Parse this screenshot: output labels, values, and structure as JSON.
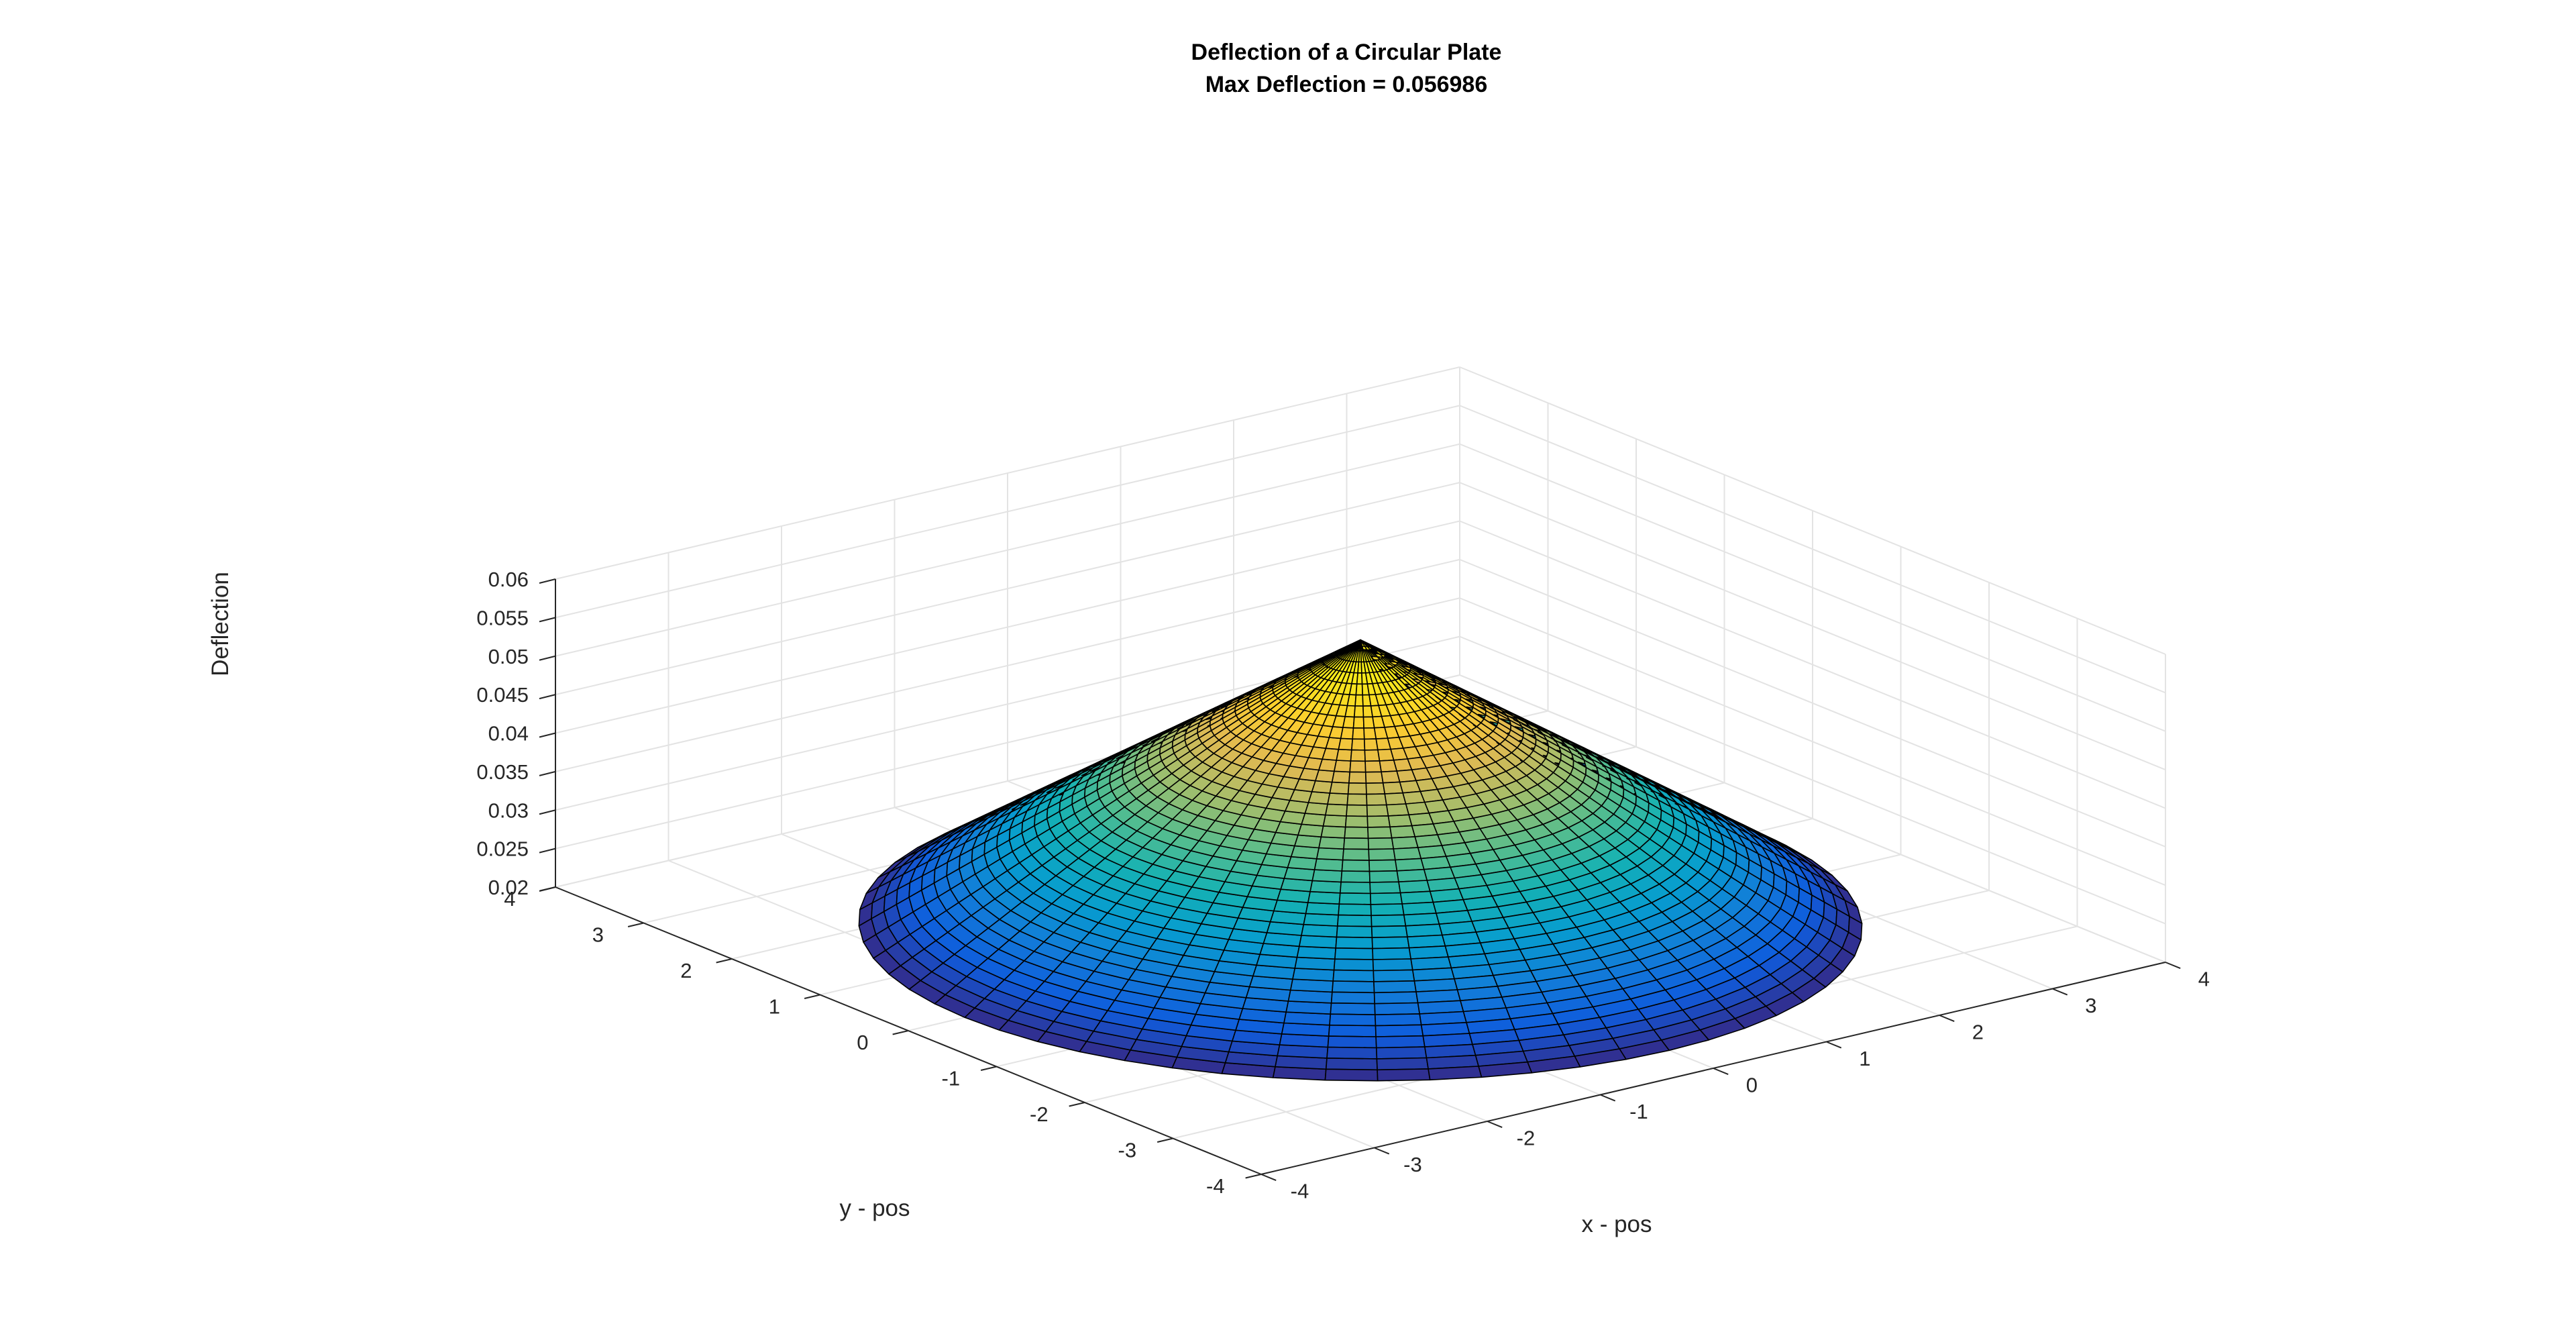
{
  "figure": {
    "title_line1": "Deflection of a Circular Plate",
    "title_line2": "Max Deflection = 0.056986"
  },
  "chart_data": {
    "type": "surface",
    "title": "Deflection of a Circular Plate",
    "subtitle": "Max Deflection = 0.056986",
    "xlabel": "x - pos",
    "ylabel": "y - pos",
    "zlabel": "Deflection",
    "xlim": [
      -4,
      4
    ],
    "ylim": [
      -4,
      4
    ],
    "zlim": [
      0.02,
      0.06
    ],
    "x_ticks": [
      "-4",
      "-3",
      "-2",
      "-1",
      "0",
      "1",
      "2",
      "3",
      "4"
    ],
    "y_ticks": [
      "-4",
      "-3",
      "-2",
      "-1",
      "0",
      "1",
      "2",
      "3",
      "4"
    ],
    "z_ticks": [
      "0.02",
      "0.025",
      "0.03",
      "0.035",
      "0.04",
      "0.045",
      "0.05",
      "0.055",
      "0.06"
    ],
    "surface": {
      "shape": "cone",
      "center": [
        0,
        0
      ],
      "radius": 3.5,
      "max_deflection": 0.056986,
      "edge_deflection": 0.02,
      "radial_rings": 40,
      "angular_segments": 60,
      "colormap": "parula",
      "edge_color": "#000000"
    },
    "grid": true
  }
}
